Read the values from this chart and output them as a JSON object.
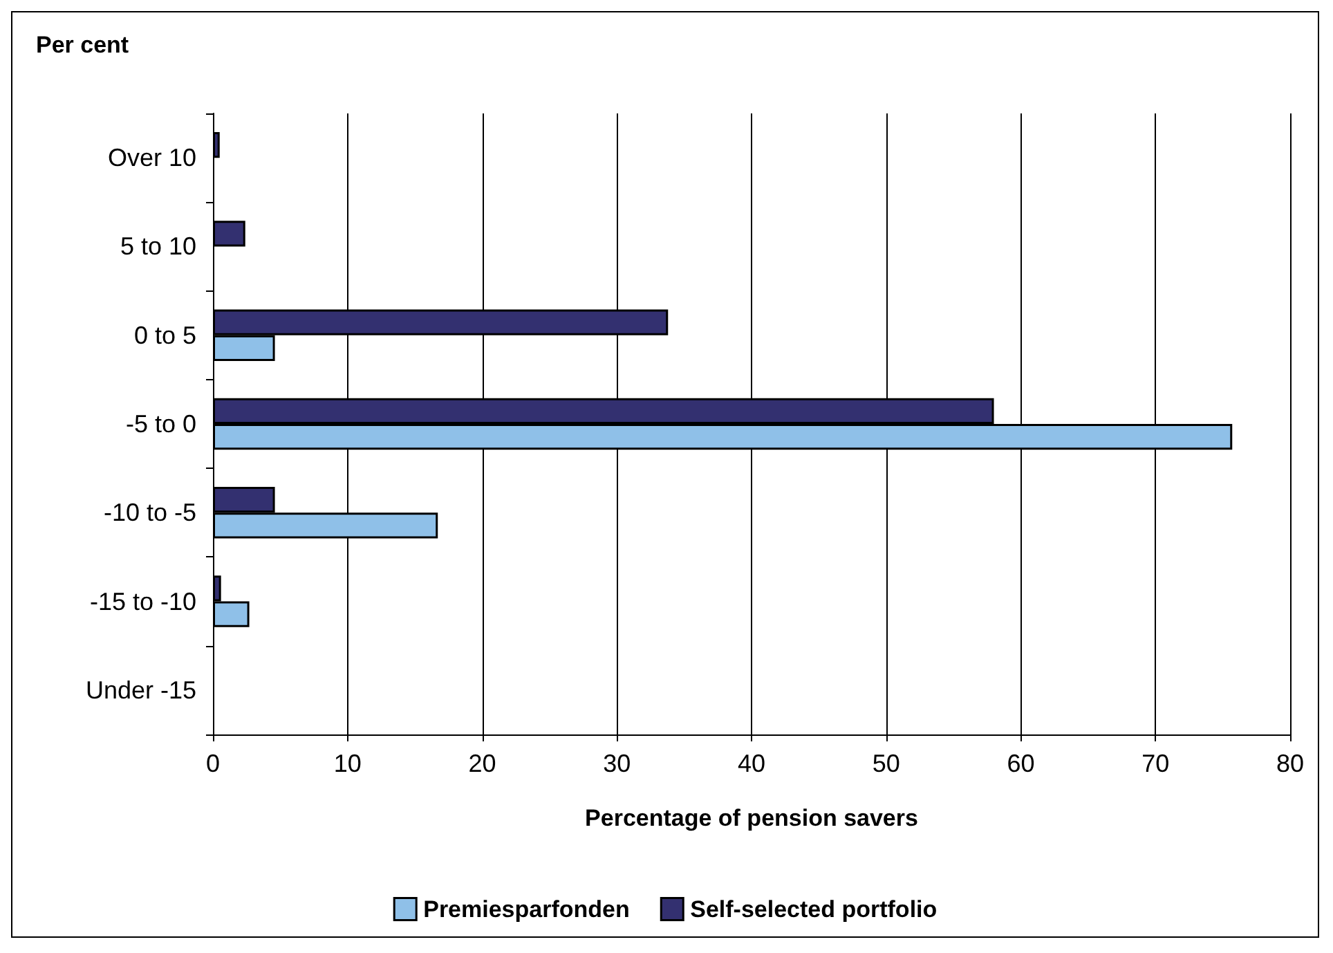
{
  "chart_data": {
    "type": "bar",
    "orientation": "horizontal",
    "title": "Per cent",
    "xlabel": "Percentage of pension savers",
    "categories": [
      "Over 10",
      "5 to 10",
      "0 to 5",
      "-5 to 0",
      "-10 to -5",
      "-15 to -10",
      "Under -15"
    ],
    "series": [
      {
        "name": "Premiesparfonden",
        "color": "#8fc0e8",
        "values": [
          null,
          null,
          4.6,
          75.7,
          16.7,
          2.7,
          null
        ]
      },
      {
        "name": "Self-selected portfolio",
        "color": "#333070",
        "values": [
          0.5,
          2.4,
          33.8,
          58.0,
          4.6,
          0.6,
          null
        ]
      }
    ],
    "xlim": [
      0,
      80
    ],
    "xticks": [
      0,
      10,
      20,
      30,
      40,
      50,
      60,
      70,
      80
    ],
    "grid": "x",
    "legend": "bottom"
  }
}
